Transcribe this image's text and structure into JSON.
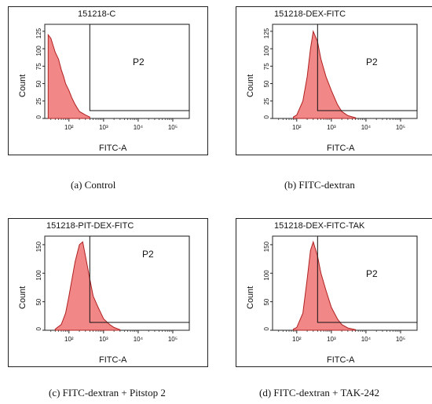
{
  "chart_data": [
    {
      "type": "area",
      "title": "151218-C",
      "xlabel": "FITC-A",
      "ylabel": "Count",
      "x_scale": "log",
      "xlim": [
        20,
        300000
      ],
      "ylim": [
        0,
        135
      ],
      "yticks": [
        0,
        25,
        50,
        75,
        100,
        125
      ],
      "xticks": [
        "10²",
        "10³",
        "10⁴",
        "10⁵"
      ],
      "gate": {
        "label": "P2",
        "x_start": 400
      },
      "series": [
        {
          "x": [
            25,
            30,
            40,
            50,
            60,
            70,
            80,
            100,
            120,
            150,
            200,
            300,
            400
          ],
          "values": [
            120,
            115,
            95,
            85,
            70,
            60,
            50,
            40,
            30,
            20,
            10,
            5,
            2
          ]
        }
      ],
      "caption": "(a) Control"
    },
    {
      "type": "area",
      "title": "151218-DEX-FITC",
      "xlabel": "FITC-A",
      "ylabel": "Count",
      "x_scale": "log",
      "xlim": [
        20,
        300000
      ],
      "ylim": [
        0,
        135
      ],
      "yticks": [
        0,
        25,
        50,
        75,
        100,
        125
      ],
      "xticks": [
        "10²",
        "10³",
        "10⁴",
        "10⁵"
      ],
      "gate": {
        "label": "P2",
        "x_start": 400
      },
      "series": [
        {
          "x": [
            80,
            100,
            150,
            200,
            250,
            300,
            400,
            500,
            700,
            1000,
            1500,
            2000,
            3000,
            5000
          ],
          "values": [
            2,
            5,
            25,
            60,
            100,
            125,
            110,
            85,
            60,
            40,
            20,
            10,
            4,
            1
          ]
        }
      ],
      "caption": "(b) FITC-dextran"
    },
    {
      "type": "area",
      "title": "151218-PIT-DEX-FITC",
      "xlabel": "FITC-A",
      "ylabel": "Count",
      "x_scale": "log",
      "xlim": [
        20,
        300000
      ],
      "ylim": [
        0,
        165
      ],
      "yticks": [
        0,
        50,
        100,
        150
      ],
      "xticks": [
        "10²",
        "10³",
        "10⁴",
        "10⁵"
      ],
      "gate": {
        "label": "P2",
        "x_start": 400
      },
      "series": [
        {
          "x": [
            40,
            60,
            80,
            100,
            150,
            200,
            250,
            300,
            400,
            500,
            700,
            1000,
            1500,
            2000,
            3000
          ],
          "values": [
            2,
            10,
            30,
            60,
            120,
            150,
            155,
            130,
            90,
            60,
            40,
            20,
            10,
            5,
            1
          ]
        }
      ],
      "caption": "(c) FITC-dextran + Pitstop 2"
    },
    {
      "type": "area",
      "title": "151218-DEX-FITC-TAK",
      "xlabel": "FITC-A",
      "ylabel": "Count",
      "x_scale": "log",
      "xlim": [
        20,
        300000
      ],
      "ylim": [
        0,
        165
      ],
      "yticks": [
        0,
        50,
        100,
        150
      ],
      "xticks": [
        "10²",
        "10³",
        "10⁴",
        "10⁵"
      ],
      "gate": {
        "label": "P2",
        "x_start": 400
      },
      "series": [
        {
          "x": [
            80,
            100,
            150,
            200,
            250,
            300,
            400,
            500,
            700,
            1000,
            1500,
            2000,
            3000,
            5000
          ],
          "values": [
            2,
            5,
            30,
            90,
            140,
            155,
            130,
            100,
            70,
            40,
            20,
            10,
            4,
            1
          ]
        }
      ],
      "caption": "(d) FITC-dextran + TAK-242"
    }
  ]
}
